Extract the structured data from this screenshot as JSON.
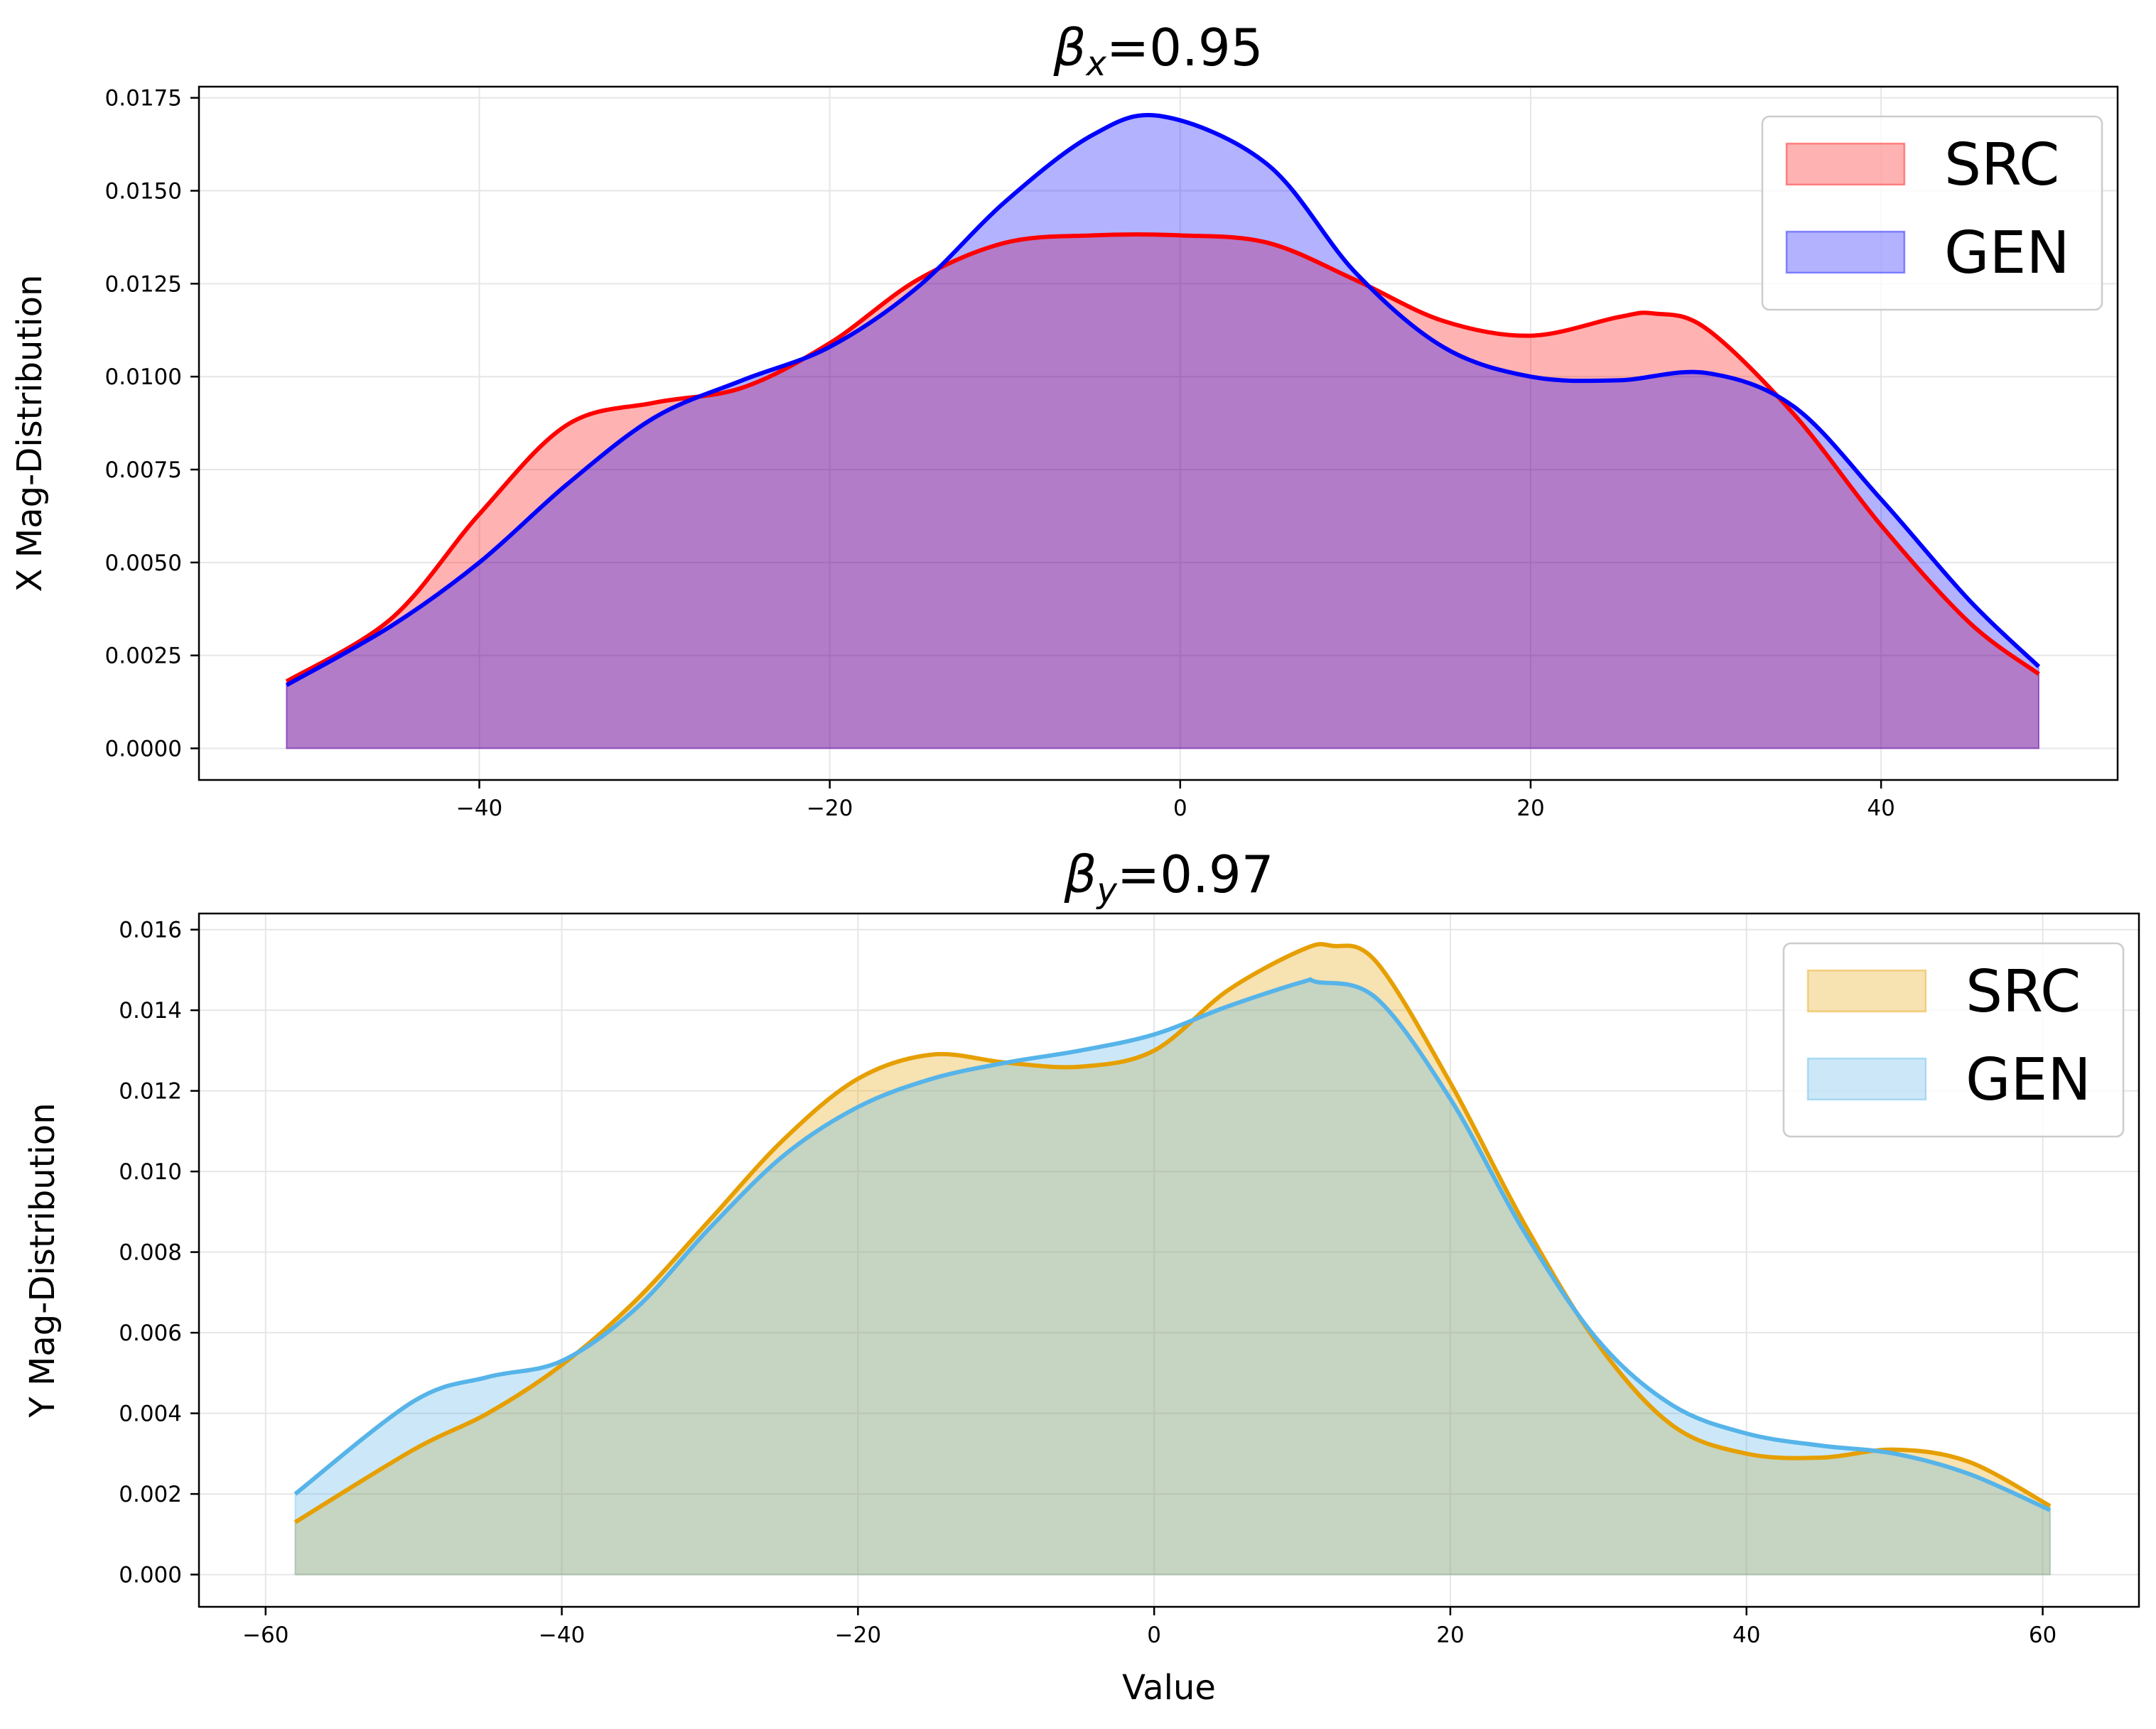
{
  "chart_data": [
    {
      "type": "area",
      "title": {
        "symbol": "β",
        "sub": "x",
        "text": "=0.95"
      },
      "xlabel": "",
      "ylabel": "X Mag-Distribution",
      "xlim": [
        -56.0,
        53.5
      ],
      "ylim": [
        -0.00085,
        0.0178
      ],
      "xticks": [
        -40,
        -20,
        0,
        20,
        40
      ],
      "xtick_labels": [
        "−40",
        "−20",
        "0",
        "20",
        "40"
      ],
      "yticks": [
        0.0,
        0.0025,
        0.005,
        0.0075,
        0.01,
        0.0125,
        0.015,
        0.0175
      ],
      "ytick_labels": [
        "0.0000",
        "0.0025",
        "0.0050",
        "0.0075",
        "0.0100",
        "0.0125",
        "0.0150",
        "0.0175"
      ],
      "grid": true,
      "legend": {
        "position": "top-right",
        "entries": [
          "SRC",
          "GEN"
        ]
      },
      "colors": {
        "src_line": "#ff0000",
        "src_fill": "#ff0000",
        "gen_line": "#0000ff",
        "gen_fill": "#0000ff"
      },
      "series": [
        {
          "name": "SRC",
          "x": [
            -51,
            -45,
            -40,
            -35,
            -30,
            -25,
            -20,
            -15,
            -10,
            -5,
            0,
            5,
            10,
            15,
            20,
            25,
            27,
            30,
            35,
            40,
            45,
            49
          ],
          "y": [
            0.0018,
            0.0035,
            0.0063,
            0.0087,
            0.0093,
            0.0097,
            0.0109,
            0.0126,
            0.0136,
            0.0138,
            0.0138,
            0.0136,
            0.0126,
            0.0115,
            0.0111,
            0.0116,
            0.0117,
            0.0113,
            0.009,
            0.006,
            0.0034,
            0.002
          ]
        },
        {
          "name": "GEN",
          "x": [
            -51,
            -45,
            -40,
            -35,
            -30,
            -25,
            -20,
            -15,
            -10,
            -5,
            -1,
            5,
            10,
            15,
            20,
            25,
            30,
            35,
            40,
            45,
            49
          ],
          "y": [
            0.0017,
            0.0033,
            0.005,
            0.0071,
            0.0089,
            0.0099,
            0.0108,
            0.0124,
            0.0147,
            0.0165,
            0.017,
            0.0157,
            0.0128,
            0.0108,
            0.01,
            0.0099,
            0.0101,
            0.0092,
            0.0067,
            0.004,
            0.0022
          ]
        }
      ]
    },
    {
      "type": "area",
      "title": {
        "symbol": "β",
        "sub": "y",
        "text": "=0.97"
      },
      "xlabel": "Value",
      "ylabel": "Y Mag-Distribution",
      "xlim": [
        -64.5,
        66.5
      ],
      "ylim": [
        -0.0008,
        0.0164
      ],
      "xticks": [
        -60,
        -40,
        -20,
        0,
        20,
        40,
        60
      ],
      "xtick_labels": [
        "−60",
        "−40",
        "−20",
        "0",
        "20",
        "40",
        "60"
      ],
      "yticks": [
        0.0,
        0.002,
        0.004,
        0.006,
        0.008,
        0.01,
        0.012,
        0.014,
        0.016
      ],
      "ytick_labels": [
        "0.000",
        "0.002",
        "0.004",
        "0.006",
        "0.008",
        "0.010",
        "0.012",
        "0.014",
        "0.016"
      ],
      "grid": true,
      "legend": {
        "position": "top-right",
        "entries": [
          "SRC",
          "GEN"
        ]
      },
      "colors": {
        "src_line": "#e69f00",
        "src_fill": "#e69f00",
        "gen_line": "#56b4e9",
        "gen_fill": "#56b4e9"
      },
      "series": [
        {
          "name": "SRC",
          "x": [
            -58,
            -50,
            -45,
            -40,
            -35,
            -30,
            -25,
            -20,
            -15,
            -10,
            -5,
            0,
            5,
            10,
            12,
            15,
            20,
            25,
            30,
            35,
            40,
            45,
            50,
            55,
            60.5
          ],
          "y": [
            0.0013,
            0.0031,
            0.004,
            0.0052,
            0.0068,
            0.0088,
            0.0108,
            0.0123,
            0.0129,
            0.0127,
            0.0126,
            0.013,
            0.0145,
            0.0155,
            0.0156,
            0.0152,
            0.0122,
            0.0087,
            0.0057,
            0.0037,
            0.003,
            0.0029,
            0.0031,
            0.0028,
            0.0017
          ]
        },
        {
          "name": "GEN",
          "x": [
            -58,
            -50,
            -45,
            -40,
            -35,
            -30,
            -25,
            -20,
            -15,
            -10,
            -5,
            0,
            5,
            10,
            11,
            15,
            20,
            25,
            30,
            35,
            40,
            45,
            50,
            55,
            60.5
          ],
          "y": [
            0.002,
            0.0043,
            0.0049,
            0.0053,
            0.0066,
            0.0086,
            0.0104,
            0.0116,
            0.0123,
            0.0127,
            0.013,
            0.0134,
            0.0141,
            0.0147,
            0.0147,
            0.0143,
            0.0118,
            0.0085,
            0.0058,
            0.0042,
            0.0035,
            0.0032,
            0.003,
            0.0025,
            0.0016
          ]
        }
      ]
    }
  ]
}
